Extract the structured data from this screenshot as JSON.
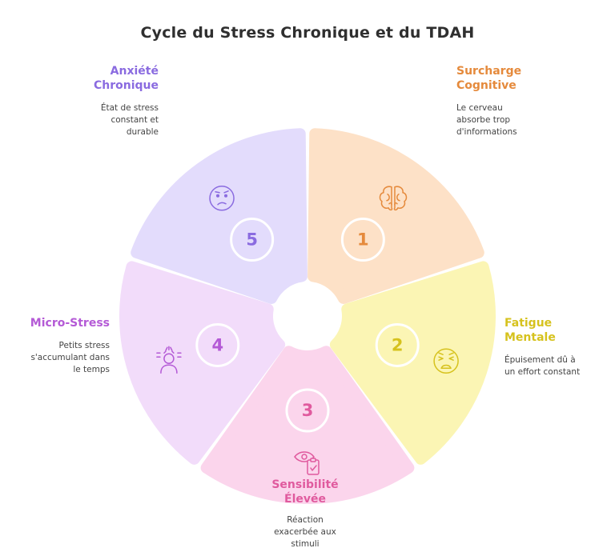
{
  "title": "Cycle du Stress Chronique et du TDAH",
  "colors": {
    "seg1": "#fde1c7",
    "seg2": "#fbf5b4",
    "seg3": "#fbd5ec",
    "seg4": "#f2dcfa",
    "seg5": "#e3dcfc",
    "text1": "#e58a3c",
    "text2": "#d6c21d",
    "text3": "#e05a9e",
    "text4": "#b45ad6",
    "text5": "#8a6be0"
  },
  "steps": [
    {
      "number": "1",
      "title_lines": [
        "Surcharge",
        "Cognitive"
      ],
      "desc_lines": [
        "Le cerveau",
        "absorbe trop",
        "d'informations"
      ],
      "icon": "brain-icon"
    },
    {
      "number": "2",
      "title_lines": [
        "Fatigue",
        "Mentale"
      ],
      "desc_lines": [
        "Épuisement dû à",
        "un effort constant"
      ],
      "icon": "tired-face-icon"
    },
    {
      "number": "3",
      "title_lines": [
        "Sensibilité",
        "Élevée"
      ],
      "desc_lines": [
        "Réaction",
        "exacerbée aux",
        "stimuli"
      ],
      "icon": "eye-clipboard-icon"
    },
    {
      "number": "4",
      "title_lines": [
        "Micro-Stress"
      ],
      "desc_lines": [
        "Petits stress",
        "s'accumulant dans",
        "le temps"
      ],
      "icon": "stressed-person-icon"
    },
    {
      "number": "5",
      "title_lines": [
        "Anxiété",
        "Chronique"
      ],
      "desc_lines": [
        "État de stress",
        "constant et",
        "durable"
      ],
      "icon": "worried-face-icon"
    }
  ]
}
